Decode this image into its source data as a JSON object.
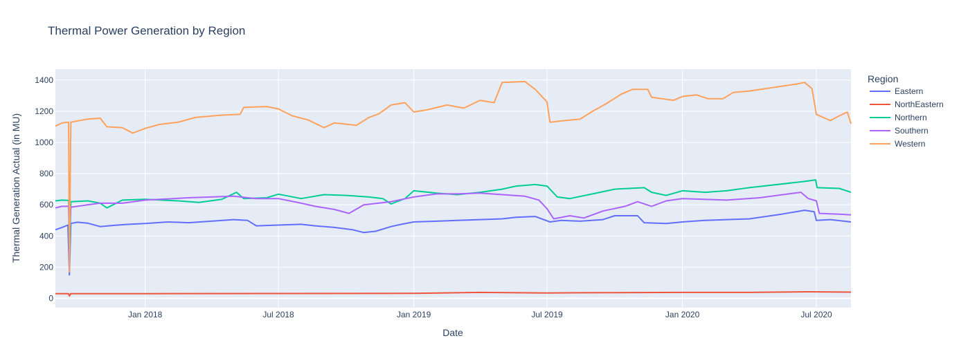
{
  "chart_data": {
    "type": "line",
    "title": "Thermal Power Generation by Region",
    "xlabel": "Date",
    "ylabel": "Thermal Generation Actual (in MU)",
    "xlim": [
      "2017-09-01",
      "2020-08-17"
    ],
    "ylim": [
      -60,
      1470
    ],
    "x_ticks": [
      "2018-01-01",
      "2018-07-01",
      "2019-01-01",
      "2019-07-01",
      "2020-01-01",
      "2020-07-01"
    ],
    "x_tick_labels": [
      "Jan 2018",
      "Jul 2018",
      "Jan 2019",
      "Jul 2019",
      "Jan 2020",
      "Jul 2020"
    ],
    "y_ticks": [
      0,
      200,
      400,
      600,
      800,
      1000,
      1200,
      1400
    ],
    "y_tick_labels": [
      "0",
      "200",
      "400",
      "600",
      "800",
      "1000",
      "1200",
      "1400"
    ],
    "legend": {
      "title": "Region",
      "position": "right"
    },
    "colors": {
      "plot_bg": "#e5ecf6",
      "grid": "#ffffff",
      "text": "#2a3f5f"
    },
    "series": [
      {
        "name": "Eastern",
        "color": "#636efa",
        "points": [
          [
            "2017-09-01",
            440
          ],
          [
            "2017-09-10",
            455
          ],
          [
            "2017-09-18",
            470
          ],
          [
            "2017-09-20",
            150
          ],
          [
            "2017-09-22",
            480
          ],
          [
            "2017-10-01",
            488
          ],
          [
            "2017-10-15",
            482
          ],
          [
            "2017-11-01",
            460
          ],
          [
            "2017-11-20",
            468
          ],
          [
            "2017-12-10",
            475
          ],
          [
            "2018-01-01",
            480
          ],
          [
            "2018-02-01",
            490
          ],
          [
            "2018-03-01",
            485
          ],
          [
            "2018-04-01",
            495
          ],
          [
            "2018-05-01",
            505
          ],
          [
            "2018-05-20",
            500
          ],
          [
            "2018-06-01",
            465
          ],
          [
            "2018-07-01",
            470
          ],
          [
            "2018-08-01",
            475
          ],
          [
            "2018-08-20",
            465
          ],
          [
            "2018-09-15",
            455
          ],
          [
            "2018-10-10",
            440
          ],
          [
            "2018-10-25",
            422
          ],
          [
            "2018-11-10",
            430
          ],
          [
            "2018-12-01",
            460
          ],
          [
            "2018-12-15",
            475
          ],
          [
            "2019-01-01",
            490
          ],
          [
            "2019-02-01",
            495
          ],
          [
            "2019-03-01",
            500
          ],
          [
            "2019-04-01",
            505
          ],
          [
            "2019-05-01",
            510
          ],
          [
            "2019-05-20",
            520
          ],
          [
            "2019-06-15",
            525
          ],
          [
            "2019-07-05",
            490
          ],
          [
            "2019-07-20",
            500
          ],
          [
            "2019-08-15",
            495
          ],
          [
            "2019-09-15",
            505
          ],
          [
            "2019-10-01",
            530
          ],
          [
            "2019-11-01",
            530
          ],
          [
            "2019-11-10",
            485
          ],
          [
            "2019-12-10",
            480
          ],
          [
            "2020-01-01",
            490
          ],
          [
            "2020-02-01",
            500
          ],
          [
            "2020-03-01",
            505
          ],
          [
            "2020-04-01",
            510
          ],
          [
            "2020-05-15",
            540
          ],
          [
            "2020-06-15",
            565
          ],
          [
            "2020-06-28",
            555
          ],
          [
            "2020-07-01",
            500
          ],
          [
            "2020-07-20",
            505
          ],
          [
            "2020-08-17",
            490
          ]
        ]
      },
      {
        "name": "NorthEastern",
        "color": "#ef553b",
        "points": [
          [
            "2017-09-01",
            30
          ],
          [
            "2017-09-19",
            30
          ],
          [
            "2017-09-20",
            15
          ],
          [
            "2017-09-22",
            30
          ],
          [
            "2018-01-01",
            30
          ],
          [
            "2018-07-01",
            31
          ],
          [
            "2019-01-01",
            32
          ],
          [
            "2019-04-01",
            38
          ],
          [
            "2019-07-01",
            34
          ],
          [
            "2019-07-15",
            35
          ],
          [
            "2019-08-15",
            36
          ],
          [
            "2020-01-01",
            38
          ],
          [
            "2020-04-01",
            38
          ],
          [
            "2020-06-20",
            42
          ],
          [
            "2020-08-17",
            40
          ]
        ]
      },
      {
        "name": "Northern",
        "color": "#00cc96",
        "points": [
          [
            "2017-09-01",
            625
          ],
          [
            "2017-09-10",
            630
          ],
          [
            "2017-09-19",
            628
          ],
          [
            "2017-09-20",
            250
          ],
          [
            "2017-09-22",
            620
          ],
          [
            "2017-10-15",
            625
          ],
          [
            "2017-11-01",
            610
          ],
          [
            "2017-11-10",
            580
          ],
          [
            "2017-12-01",
            630
          ],
          [
            "2018-01-01",
            635
          ],
          [
            "2018-02-15",
            625
          ],
          [
            "2018-03-15",
            615
          ],
          [
            "2018-04-15",
            635
          ],
          [
            "2018-05-05",
            680
          ],
          [
            "2018-05-15",
            640
          ],
          [
            "2018-06-15",
            645
          ],
          [
            "2018-07-01",
            668
          ],
          [
            "2018-08-01",
            640
          ],
          [
            "2018-09-01",
            665
          ],
          [
            "2018-10-01",
            660
          ],
          [
            "2018-11-01",
            650
          ],
          [
            "2018-11-20",
            640
          ],
          [
            "2018-12-01",
            605
          ],
          [
            "2018-12-20",
            640
          ],
          [
            "2019-01-01",
            690
          ],
          [
            "2019-02-01",
            675
          ],
          [
            "2019-03-01",
            665
          ],
          [
            "2019-04-01",
            680
          ],
          [
            "2019-05-01",
            700
          ],
          [
            "2019-05-20",
            720
          ],
          [
            "2019-06-15",
            730
          ],
          [
            "2019-07-01",
            720
          ],
          [
            "2019-07-15",
            650
          ],
          [
            "2019-08-01",
            640
          ],
          [
            "2019-09-01",
            670
          ],
          [
            "2019-10-01",
            700
          ],
          [
            "2019-11-10",
            710
          ],
          [
            "2019-11-20",
            680
          ],
          [
            "2019-12-10",
            660
          ],
          [
            "2020-01-01",
            690
          ],
          [
            "2020-02-01",
            680
          ],
          [
            "2020-03-01",
            690
          ],
          [
            "2020-04-01",
            710
          ],
          [
            "2020-06-15",
            750
          ],
          [
            "2020-06-30",
            760
          ],
          [
            "2020-07-02",
            710
          ],
          [
            "2020-08-01",
            705
          ],
          [
            "2020-08-17",
            680
          ]
        ]
      },
      {
        "name": "Southern",
        "color": "#ab63fa",
        "points": [
          [
            "2017-09-01",
            580
          ],
          [
            "2017-09-10",
            590
          ],
          [
            "2017-09-19",
            590
          ],
          [
            "2017-09-20",
            410
          ],
          [
            "2017-09-22",
            585
          ],
          [
            "2017-10-15",
            600
          ],
          [
            "2017-11-01",
            610
          ],
          [
            "2017-12-01",
            610
          ],
          [
            "2018-01-01",
            630
          ],
          [
            "2018-03-01",
            645
          ],
          [
            "2018-05-01",
            655
          ],
          [
            "2018-06-01",
            640
          ],
          [
            "2018-07-01",
            640
          ],
          [
            "2018-08-01",
            610
          ],
          [
            "2018-08-20",
            590
          ],
          [
            "2018-09-15",
            570
          ],
          [
            "2018-10-05",
            545
          ],
          [
            "2018-10-25",
            600
          ],
          [
            "2018-12-01",
            620
          ],
          [
            "2019-01-01",
            650
          ],
          [
            "2019-02-01",
            670
          ],
          [
            "2019-03-01",
            670
          ],
          [
            "2019-04-01",
            675
          ],
          [
            "2019-05-01",
            665
          ],
          [
            "2019-06-01",
            655
          ],
          [
            "2019-06-20",
            630
          ],
          [
            "2019-07-01",
            575
          ],
          [
            "2019-07-10",
            510
          ],
          [
            "2019-08-01",
            530
          ],
          [
            "2019-08-20",
            515
          ],
          [
            "2019-09-15",
            560
          ],
          [
            "2019-10-15",
            590
          ],
          [
            "2019-11-01",
            620
          ],
          [
            "2019-11-20",
            590
          ],
          [
            "2019-12-10",
            625
          ],
          [
            "2020-01-01",
            640
          ],
          [
            "2020-03-01",
            630
          ],
          [
            "2020-04-15",
            645
          ],
          [
            "2020-06-10",
            680
          ],
          [
            "2020-06-20",
            640
          ],
          [
            "2020-07-01",
            625
          ],
          [
            "2020-07-05",
            545
          ],
          [
            "2020-08-01",
            540
          ],
          [
            "2020-08-17",
            535
          ]
        ]
      },
      {
        "name": "Western",
        "color": "#ffa15a",
        "points": [
          [
            "2017-09-01",
            1105
          ],
          [
            "2017-09-10",
            1125
          ],
          [
            "2017-09-19",
            1130
          ],
          [
            "2017-09-20",
            170
          ],
          [
            "2017-09-22",
            1130
          ],
          [
            "2017-10-15",
            1150
          ],
          [
            "2017-11-01",
            1155
          ],
          [
            "2017-11-10",
            1100
          ],
          [
            "2017-12-01",
            1095
          ],
          [
            "2017-12-15",
            1060
          ],
          [
            "2018-01-01",
            1090
          ],
          [
            "2018-01-20",
            1115
          ],
          [
            "2018-02-15",
            1130
          ],
          [
            "2018-03-10",
            1160
          ],
          [
            "2018-04-15",
            1175
          ],
          [
            "2018-05-10",
            1180
          ],
          [
            "2018-05-15",
            1225
          ],
          [
            "2018-06-15",
            1230
          ],
          [
            "2018-07-01",
            1215
          ],
          [
            "2018-07-20",
            1170
          ],
          [
            "2018-08-10",
            1145
          ],
          [
            "2018-09-01",
            1095
          ],
          [
            "2018-09-15",
            1125
          ],
          [
            "2018-10-15",
            1110
          ],
          [
            "2018-11-01",
            1160
          ],
          [
            "2018-11-15",
            1185
          ],
          [
            "2018-12-01",
            1240
          ],
          [
            "2018-12-20",
            1255
          ],
          [
            "2019-01-01",
            1195
          ],
          [
            "2019-01-20",
            1210
          ],
          [
            "2019-02-15",
            1240
          ],
          [
            "2019-03-10",
            1220
          ],
          [
            "2019-04-01",
            1270
          ],
          [
            "2019-04-20",
            1255
          ],
          [
            "2019-05-01",
            1385
          ],
          [
            "2019-06-01",
            1390
          ],
          [
            "2019-06-15",
            1340
          ],
          [
            "2019-07-01",
            1260
          ],
          [
            "2019-07-05",
            1130
          ],
          [
            "2019-07-25",
            1140
          ],
          [
            "2019-08-15",
            1150
          ],
          [
            "2019-09-01",
            1200
          ],
          [
            "2019-09-20",
            1250
          ],
          [
            "2019-10-10",
            1310
          ],
          [
            "2019-10-25",
            1340
          ],
          [
            "2019-11-15",
            1340
          ],
          [
            "2019-11-20",
            1290
          ],
          [
            "2019-12-20",
            1270
          ],
          [
            "2020-01-01",
            1295
          ],
          [
            "2020-01-20",
            1305
          ],
          [
            "2020-02-05",
            1280
          ],
          [
            "2020-02-25",
            1280
          ],
          [
            "2020-03-10",
            1320
          ],
          [
            "2020-04-01",
            1330
          ],
          [
            "2020-06-05",
            1375
          ],
          [
            "2020-06-15",
            1385
          ],
          [
            "2020-06-25",
            1345
          ],
          [
            "2020-07-01",
            1180
          ],
          [
            "2020-07-20",
            1140
          ],
          [
            "2020-08-01",
            1170
          ],
          [
            "2020-08-12",
            1195
          ],
          [
            "2020-08-17",
            1120
          ]
        ]
      }
    ]
  }
}
